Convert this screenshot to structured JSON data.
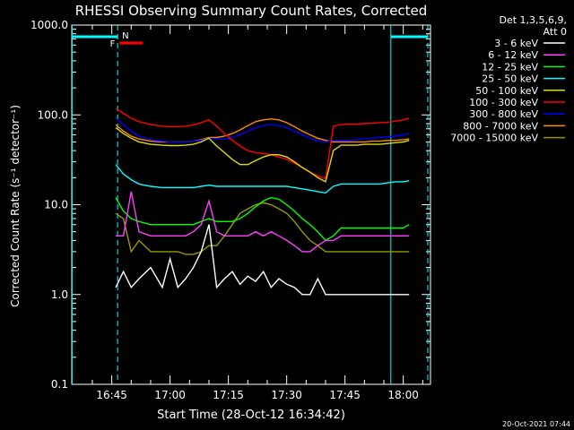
{
  "chart_data": {
    "type": "line",
    "title": "RHESSI Observing Summary Count Rates, Corrected",
    "xlabel": "Start Time (28-Oct-12 16:34:42)",
    "ylabel": "Corrected Count Rate (s⁻¹ detector⁻¹)",
    "y_scale": "log",
    "ylim": [
      0.1,
      1000
    ],
    "y_ticks": [
      "0.1",
      "1.0",
      "10.0",
      "100.0",
      "1000.0"
    ],
    "x_range_minutes": [
      34.7,
      127.0
    ],
    "x_ticks": [
      {
        "label": "16:45",
        "minute": 45
      },
      {
        "label": "17:00",
        "minute": 60
      },
      {
        "label": "17:15",
        "minute": 75
      },
      {
        "label": "17:30",
        "minute": 90
      },
      {
        "label": "17:45",
        "minute": 105
      },
      {
        "label": "18:00",
        "minute": 120
      }
    ],
    "legend_header": [
      "Det 1,3,5,6,9,",
      "Att 0"
    ],
    "series": [
      {
        "name": "3 - 6 keV",
        "color": "#ffffff",
        "x": [
          46,
          48,
          50,
          52,
          55,
          58,
          60,
          62,
          64,
          66,
          68,
          70,
          72,
          74,
          76,
          78,
          80,
          82,
          84,
          86,
          88,
          90,
          92,
          94,
          96,
          98,
          100,
          102,
          104,
          106,
          108,
          110,
          112,
          114,
          116,
          118,
          120,
          121.5
        ],
        "y": [
          1.2,
          1.8,
          1.2,
          1.5,
          2.0,
          1.2,
          2.5,
          1.2,
          1.5,
          2.0,
          3.0,
          6.0,
          1.2,
          1.5,
          1.8,
          1.3,
          1.6,
          1.4,
          1.8,
          1.2,
          1.5,
          1.3,
          1.2,
          1.0,
          1.0,
          1.5,
          1.0,
          1.0,
          1.0,
          1.0,
          1.0,
          1.0,
          1.0,
          1.0,
          1.0,
          1.0,
          1.0,
          1.0
        ]
      },
      {
        "name": "6 - 12 keV",
        "color": "#ff3fff",
        "x": [
          46,
          48,
          50,
          52,
          55,
          58,
          60,
          62,
          64,
          66,
          68,
          70,
          72,
          74,
          76,
          78,
          80,
          82,
          84,
          86,
          88,
          90,
          92,
          94,
          96,
          98,
          100,
          102,
          104,
          106,
          108,
          110,
          112,
          114,
          116,
          118,
          120,
          121.5
        ],
        "y": [
          4.5,
          4.5,
          14,
          5.0,
          4.5,
          4.5,
          4.5,
          4.5,
          4.5,
          5.0,
          6.0,
          11,
          5.0,
          4.5,
          4.5,
          4.5,
          4.5,
          5.0,
          4.5,
          5.0,
          4.5,
          4.0,
          3.5,
          3.0,
          3.0,
          3.5,
          4.0,
          4.0,
          4.5,
          4.5,
          4.5,
          4.5,
          4.5,
          4.5,
          4.5,
          4.5,
          4.5,
          4.5
        ]
      },
      {
        "name": "12 - 25 keV",
        "color": "#00ff00",
        "x": [
          46,
          48,
          50,
          52,
          55,
          58,
          60,
          62,
          64,
          66,
          68,
          70,
          72,
          74,
          76,
          78,
          80,
          82,
          84,
          86,
          88,
          90,
          92,
          94,
          96,
          98,
          100,
          102,
          104,
          106,
          108,
          110,
          112,
          114,
          116,
          118,
          120,
          121.5
        ],
        "y": [
          12,
          8.5,
          7.0,
          6.5,
          6.0,
          6.0,
          6.0,
          6.0,
          6.0,
          6.0,
          6.5,
          7.0,
          6.5,
          6.5,
          6.5,
          7.0,
          8.0,
          9.5,
          11,
          12,
          11.5,
          10,
          8.5,
          7.0,
          6.0,
          5.0,
          4.0,
          4.5,
          5.5,
          5.5,
          5.5,
          5.5,
          5.5,
          5.5,
          5.5,
          5.5,
          5.5,
          6.0
        ]
      },
      {
        "name": "25 - 50 keV",
        "color": "#00ffff",
        "x": [
          46,
          48,
          50,
          52,
          55,
          58,
          60,
          62,
          64,
          66,
          68,
          70,
          72,
          74,
          76,
          78,
          80,
          82,
          84,
          86,
          88,
          90,
          92,
          94,
          96,
          98,
          100,
          102,
          104,
          106,
          108,
          110,
          112,
          114,
          116,
          118,
          120,
          121.5
        ],
        "y": [
          28,
          22,
          19,
          17,
          16,
          15.5,
          15.5,
          15.5,
          15.5,
          15.5,
          16,
          16.5,
          16,
          16,
          16,
          16,
          16,
          16,
          16,
          16,
          16,
          16,
          15.5,
          15,
          14.5,
          14,
          13.5,
          16,
          17,
          17,
          17,
          17,
          17,
          17,
          17.5,
          18,
          18,
          18.5
        ]
      },
      {
        "name": "50 - 100 keV",
        "color": "#dddd00",
        "x": [
          46,
          48,
          50,
          52,
          55,
          58,
          60,
          62,
          64,
          66,
          68,
          70,
          72,
          74,
          76,
          78,
          80,
          82,
          84,
          86,
          88,
          90,
          92,
          94,
          96,
          98,
          100,
          102,
          104,
          106,
          108,
          110,
          112,
          114,
          116,
          118,
          120,
          121.5
        ],
        "y": [
          72,
          62,
          55,
          50,
          47,
          46,
          45.5,
          45.5,
          46,
          47,
          50,
          55,
          45,
          38,
          32,
          28,
          28,
          31,
          34,
          36,
          36,
          34,
          30,
          26,
          23,
          20,
          18,
          40,
          46,
          46,
          46,
          47,
          47,
          47,
          48,
          49,
          50,
          52
        ]
      },
      {
        "name": "100 - 300 keV",
        "color": "#ff0000",
        "x": [
          46,
          48,
          50,
          52,
          55,
          58,
          60,
          62,
          64,
          66,
          68,
          70,
          72,
          74,
          76,
          78,
          80,
          82,
          84,
          86,
          88,
          90,
          92,
          94,
          96,
          98,
          100,
          102,
          104,
          106,
          108,
          110,
          112,
          114,
          116,
          118,
          120,
          121.5
        ],
        "y": [
          118,
          104,
          92,
          84,
          78,
          75,
          74,
          74,
          75,
          77,
          82,
          88,
          75,
          62,
          52,
          45,
          40,
          38,
          37,
          36,
          34,
          32,
          29,
          26,
          23,
          21,
          19.5,
          75,
          78,
          79,
          79,
          80,
          81,
          82,
          83,
          85,
          88,
          92
        ]
      },
      {
        "name": "300 - 800 keV",
        "color": "#0000ff",
        "x": [
          46,
          48,
          50,
          52,
          55,
          58,
          60,
          62,
          64,
          66,
          68,
          70,
          72,
          74,
          76,
          78,
          80,
          82,
          84,
          86,
          88,
          90,
          92,
          94,
          96,
          98,
          100,
          102,
          104,
          106,
          108,
          110,
          112,
          114,
          116,
          118,
          120,
          121.5
        ],
        "y": [
          92,
          78,
          66,
          58,
          53,
          51,
          50,
          50,
          50,
          51,
          52,
          55,
          54,
          54,
          56,
          60,
          66,
          72,
          76,
          78,
          76,
          72,
          66,
          60,
          55,
          51,
          50,
          52,
          52,
          52,
          53,
          54,
          55,
          56,
          57,
          58,
          60,
          62
        ]
      },
      {
        "name": "800 - 7000 keV",
        "color": "#ff8c00",
        "x": [
          46,
          48,
          50,
          52,
          55,
          58,
          60,
          62,
          64,
          66,
          68,
          70,
          72,
          74,
          76,
          78,
          80,
          82,
          84,
          86,
          88,
          90,
          92,
          94,
          96,
          98,
          100,
          102,
          104,
          106,
          108,
          110,
          112,
          114,
          116,
          118,
          120,
          121.5
        ],
        "y": [
          78,
          66,
          58,
          54,
          51,
          50,
          50,
          50,
          50,
          51,
          53,
          56,
          56,
          58,
          62,
          68,
          76,
          84,
          88,
          90,
          88,
          82,
          74,
          66,
          60,
          55,
          52,
          50,
          50,
          50,
          50,
          50,
          51,
          51,
          52,
          52,
          53,
          54
        ]
      },
      {
        "name": "7000 - 15000 keV",
        "color": "#999900",
        "x": [
          46,
          48,
          50,
          52,
          55,
          58,
          60,
          62,
          64,
          66,
          68,
          70,
          72,
          74,
          76,
          78,
          80,
          82,
          84,
          86,
          88,
          90,
          92,
          94,
          96,
          98,
          100,
          102,
          104,
          106,
          108,
          110,
          112,
          114,
          116,
          118,
          120,
          121.5
        ],
        "y": [
          8,
          7,
          3,
          4,
          3,
          3,
          3,
          3,
          2.8,
          2.8,
          3,
          3.5,
          3.5,
          4.5,
          6,
          8,
          9,
          10,
          10.5,
          10,
          9,
          8,
          6.5,
          5,
          4,
          3.5,
          3,
          3,
          3,
          3,
          3,
          3,
          3,
          3,
          3,
          3,
          3,
          3
        ]
      }
    ],
    "annotations": [
      {
        "text": "F",
        "color": "#ff0000"
      },
      {
        "text": "N",
        "color": "#00ffff"
      }
    ],
    "timestamp": "20-Oct-2021 07:44"
  }
}
